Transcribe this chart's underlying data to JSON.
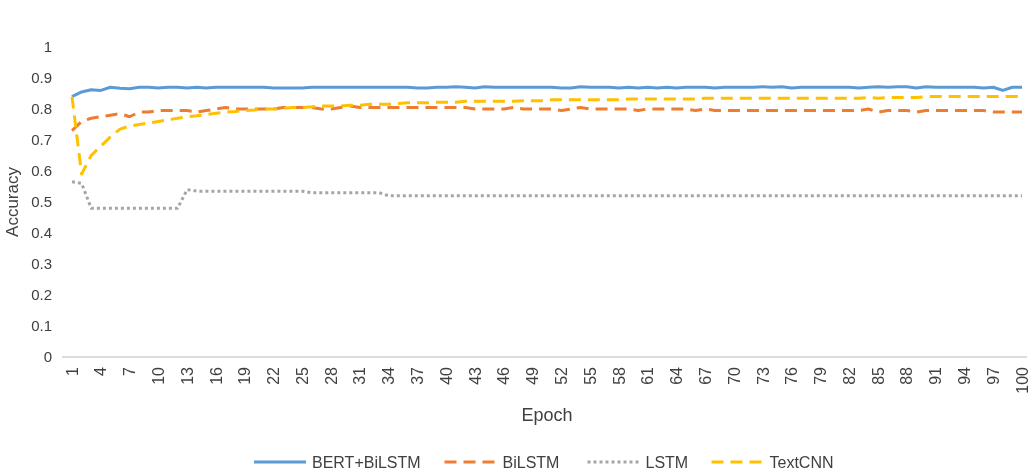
{
  "chart_data": {
    "type": "line",
    "xlabel": "Epoch",
    "ylabel": "Accuracy",
    "ylim": [
      0,
      1
    ],
    "yticks": [
      0,
      0.1,
      0.2,
      0.3,
      0.4,
      0.5,
      0.6,
      0.7,
      0.8,
      0.9,
      1
    ],
    "grid": false,
    "legend": "bottom",
    "marker": "none",
    "categories": [
      "1",
      null,
      null,
      "4",
      null,
      null,
      "7",
      null,
      null,
      "10",
      null,
      null,
      "13",
      null,
      null,
      "16",
      null,
      null,
      "19",
      null,
      null,
      "22",
      null,
      null,
      "25",
      null,
      null,
      "28",
      null,
      null,
      "31",
      null,
      null,
      "34",
      null,
      null,
      "37",
      null,
      null,
      "40",
      null,
      null,
      "43",
      null,
      null,
      "46",
      null,
      null,
      "49",
      null,
      null,
      "52",
      null,
      null,
      "55",
      null,
      null,
      "58",
      null,
      null,
      "61",
      null,
      null,
      "64",
      null,
      null,
      "67",
      null,
      null,
      "70",
      null,
      null,
      "73",
      null,
      null,
      "76",
      null,
      null,
      "79",
      null,
      null,
      "82",
      null,
      null,
      "85",
      null,
      null,
      "88",
      null,
      null,
      "91",
      null,
      null,
      "94",
      null,
      null,
      "97",
      null,
      null,
      "100"
    ],
    "series": [
      {
        "name": "BERT+BiLSTM",
        "color": "#5b9bd5",
        "line_style": "solid",
        "values": [
          0.84,
          0.855,
          0.862,
          0.86,
          0.87,
          0.867,
          0.865,
          0.87,
          0.87,
          0.868,
          0.87,
          0.87,
          0.868,
          0.87,
          0.868,
          0.87,
          0.87,
          0.87,
          0.87,
          0.87,
          0.87,
          0.868,
          0.868,
          0.868,
          0.868,
          0.87,
          0.87,
          0.87,
          0.87,
          0.87,
          0.87,
          0.87,
          0.87,
          0.87,
          0.87,
          0.87,
          0.868,
          0.868,
          0.87,
          0.87,
          0.872,
          0.87,
          0.868,
          0.872,
          0.87,
          0.87,
          0.87,
          0.87,
          0.87,
          0.87,
          0.87,
          0.868,
          0.868,
          0.872,
          0.87,
          0.87,
          0.87,
          0.868,
          0.87,
          0.868,
          0.87,
          0.868,
          0.87,
          0.868,
          0.87,
          0.87,
          0.87,
          0.868,
          0.87,
          0.87,
          0.87,
          0.87,
          0.872,
          0.87,
          0.872,
          0.868,
          0.87,
          0.87,
          0.87,
          0.87,
          0.87,
          0.87,
          0.868,
          0.87,
          0.872,
          0.87,
          0.872,
          0.872,
          0.868,
          0.872,
          0.87,
          0.87,
          0.87,
          0.87,
          0.87,
          0.868,
          0.87,
          0.86,
          0.87,
          0.87
        ]
      },
      {
        "name": "BiLSTM",
        "color": "#ed7d31",
        "line_style": "dashed",
        "values": [
          0.73,
          0.76,
          0.77,
          0.775,
          0.78,
          0.785,
          0.775,
          0.79,
          0.79,
          0.795,
          0.795,
          0.795,
          0.795,
          0.79,
          0.795,
          0.8,
          0.805,
          0.8,
          0.8,
          0.8,
          0.8,
          0.8,
          0.805,
          0.805,
          0.805,
          0.805,
          0.8,
          0.8,
          0.805,
          0.81,
          0.805,
          0.805,
          0.805,
          0.805,
          0.805,
          0.805,
          0.805,
          0.805,
          0.805,
          0.805,
          0.805,
          0.805,
          0.8,
          0.8,
          0.8,
          0.8,
          0.805,
          0.8,
          0.8,
          0.8,
          0.8,
          0.795,
          0.8,
          0.805,
          0.8,
          0.8,
          0.8,
          0.8,
          0.8,
          0.795,
          0.8,
          0.8,
          0.8,
          0.8,
          0.8,
          0.795,
          0.8,
          0.795,
          0.795,
          0.795,
          0.795,
          0.795,
          0.795,
          0.795,
          0.795,
          0.795,
          0.795,
          0.795,
          0.795,
          0.795,
          0.795,
          0.795,
          0.795,
          0.8,
          0.79,
          0.795,
          0.795,
          0.795,
          0.79,
          0.795,
          0.795,
          0.795,
          0.795,
          0.795,
          0.795,
          0.795,
          0.79,
          0.79,
          0.79,
          0.79
        ]
      },
      {
        "name": "LSTM",
        "color": "#a5a5a5",
        "line_style": "dotted",
        "values": [
          0.565,
          0.56,
          0.48,
          0.48,
          0.48,
          0.48,
          0.48,
          0.48,
          0.48,
          0.48,
          0.48,
          0.48,
          0.54,
          0.535,
          0.535,
          0.535,
          0.535,
          0.535,
          0.535,
          0.535,
          0.535,
          0.535,
          0.535,
          0.535,
          0.535,
          0.53,
          0.53,
          0.53,
          0.53,
          0.53,
          0.53,
          0.53,
          0.53,
          0.52,
          0.52,
          0.52,
          0.52,
          0.52,
          0.52,
          0.52,
          0.52,
          0.52,
          0.52,
          0.52,
          0.52,
          0.52,
          0.52,
          0.52,
          0.52,
          0.52,
          0.52,
          0.52,
          0.52,
          0.52,
          0.52,
          0.52,
          0.52,
          0.52,
          0.52,
          0.52,
          0.52,
          0.52,
          0.52,
          0.52,
          0.52,
          0.52,
          0.52,
          0.52,
          0.52,
          0.52,
          0.52,
          0.52,
          0.52,
          0.52,
          0.52,
          0.52,
          0.52,
          0.52,
          0.52,
          0.52,
          0.52,
          0.52,
          0.52,
          0.52,
          0.52,
          0.52,
          0.52,
          0.52,
          0.52,
          0.52,
          0.52,
          0.52,
          0.52,
          0.52,
          0.52,
          0.52,
          0.52,
          0.52,
          0.52,
          0.52
        ]
      },
      {
        "name": "TextCNN",
        "color": "#ffc000",
        "line_style": "dashed",
        "values": [
          0.84,
          0.59,
          0.65,
          0.68,
          0.71,
          0.735,
          0.745,
          0.75,
          0.755,
          0.76,
          0.765,
          0.77,
          0.775,
          0.778,
          0.782,
          0.786,
          0.79,
          0.792,
          0.795,
          0.797,
          0.8,
          0.8,
          0.802,
          0.805,
          0.805,
          0.807,
          0.81,
          0.81,
          0.81,
          0.812,
          0.812,
          0.815,
          0.815,
          0.815,
          0.818,
          0.82,
          0.82,
          0.82,
          0.822,
          0.822,
          0.822,
          0.825,
          0.825,
          0.825,
          0.825,
          0.825,
          0.825,
          0.827,
          0.827,
          0.827,
          0.83,
          0.83,
          0.83,
          0.83,
          0.83,
          0.83,
          0.83,
          0.83,
          0.832,
          0.832,
          0.832,
          0.832,
          0.832,
          0.832,
          0.832,
          0.832,
          0.835,
          0.835,
          0.835,
          0.835,
          0.835,
          0.835,
          0.835,
          0.835,
          0.835,
          0.835,
          0.835,
          0.835,
          0.835,
          0.835,
          0.835,
          0.835,
          0.835,
          0.837,
          0.835,
          0.837,
          0.837,
          0.837,
          0.837,
          0.84,
          0.84,
          0.84,
          0.84,
          0.84,
          0.84,
          0.84,
          0.84,
          0.84,
          0.84,
          0.84
        ]
      }
    ]
  }
}
